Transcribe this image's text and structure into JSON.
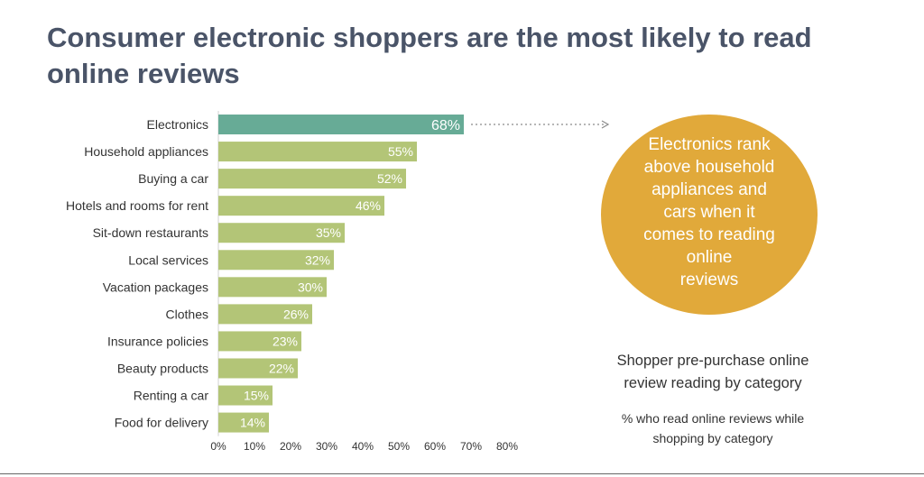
{
  "title": "Consumer electronic shoppers are the most likely to read online reviews",
  "callout": {
    "text": "Electronics rank\nabove household\nappliances and\ncars when it\ncomes to reading\nonline\nreviews"
  },
  "caption": "Shopper pre-purchase online\nreview reading by category",
  "subcaption": "% who read online reviews while\nshopping by category",
  "colors": {
    "highlight_bar": "#67ab96",
    "bar": "#b3c577",
    "circle": "#e1a93a",
    "title": "#4a5468"
  },
  "chart_data": {
    "type": "bar",
    "orientation": "horizontal",
    "categories": [
      "Electronics",
      "Household appliances",
      "Buying a car",
      "Hotels and rooms for rent",
      "Sit-down restaurants",
      "Local services",
      "Vacation packages",
      "Clothes",
      "Insurance policies",
      "Beauty products",
      "Renting a car",
      "Food for delivery"
    ],
    "values": [
      68,
      55,
      52,
      46,
      35,
      32,
      30,
      26,
      23,
      22,
      15,
      14
    ],
    "data_labels": [
      "68%",
      "55%",
      "52%",
      "46%",
      "35%",
      "32%",
      "30%",
      "26%",
      "23%",
      "22%",
      "15%",
      "14%"
    ],
    "highlighted_category": "Electronics",
    "xlim": [
      0,
      80
    ],
    "x_ticks": [
      0,
      10,
      20,
      30,
      40,
      50,
      60,
      70,
      80
    ],
    "x_tick_labels": [
      "0%",
      "10%",
      "20%",
      "30%",
      "40%",
      "50%",
      "60%",
      "70%",
      "80%"
    ],
    "grid": false,
    "legend": "none"
  }
}
